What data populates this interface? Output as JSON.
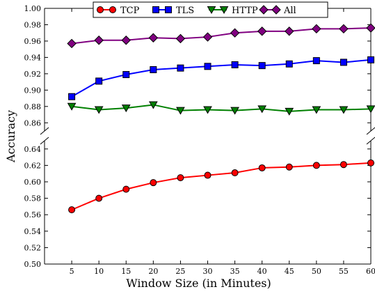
{
  "chart_data": {
    "type": "line",
    "broken_y_axis": true,
    "xlabel": "Window Size (in Minutes)",
    "ylabel": "Accuracy",
    "x": [
      5,
      10,
      15,
      20,
      25,
      30,
      35,
      40,
      45,
      50,
      55,
      60
    ],
    "x_ticks": [
      "5",
      "10",
      "15",
      "20",
      "25",
      "30",
      "35",
      "40",
      "45",
      "50",
      "55",
      "60"
    ],
    "xlim": [
      0,
      60
    ],
    "y_upper_range": [
      0.85,
      1.0
    ],
    "y_lower_range": [
      0.5,
      0.65
    ],
    "y_upper_ticks": [
      "0.86",
      "0.88",
      "0.90",
      "0.92",
      "0.94",
      "0.96",
      "0.98",
      "1.00"
    ],
    "y_lower_ticks": [
      "0.50",
      "0.52",
      "0.54",
      "0.56",
      "0.58",
      "0.60",
      "0.62",
      "0.64"
    ],
    "legend_position": "top-center",
    "grid": false,
    "series": [
      {
        "name": "TCP",
        "color": "#ff0000",
        "marker": "circle",
        "values": [
          0.566,
          0.58,
          0.591,
          0.599,
          0.605,
          0.608,
          0.611,
          0.617,
          0.618,
          0.62,
          0.621,
          0.623
        ]
      },
      {
        "name": "TLS",
        "color": "#0000ff",
        "marker": "square",
        "values": [
          0.892,
          0.911,
          0.919,
          0.925,
          0.927,
          0.929,
          0.931,
          0.93,
          0.932,
          0.936,
          0.934,
          0.937
        ]
      },
      {
        "name": "HTTP",
        "color": "#008000",
        "marker": "triangle-down",
        "values": [
          0.88,
          0.876,
          0.878,
          0.882,
          0.875,
          0.876,
          0.875,
          0.877,
          0.874,
          0.876,
          0.876,
          0.877
        ]
      },
      {
        "name": "All",
        "color": "#800080",
        "marker": "diamond",
        "values": [
          0.957,
          0.961,
          0.961,
          0.964,
          0.963,
          0.965,
          0.97,
          0.972,
          0.972,
          0.975,
          0.975,
          0.976
        ]
      }
    ]
  }
}
